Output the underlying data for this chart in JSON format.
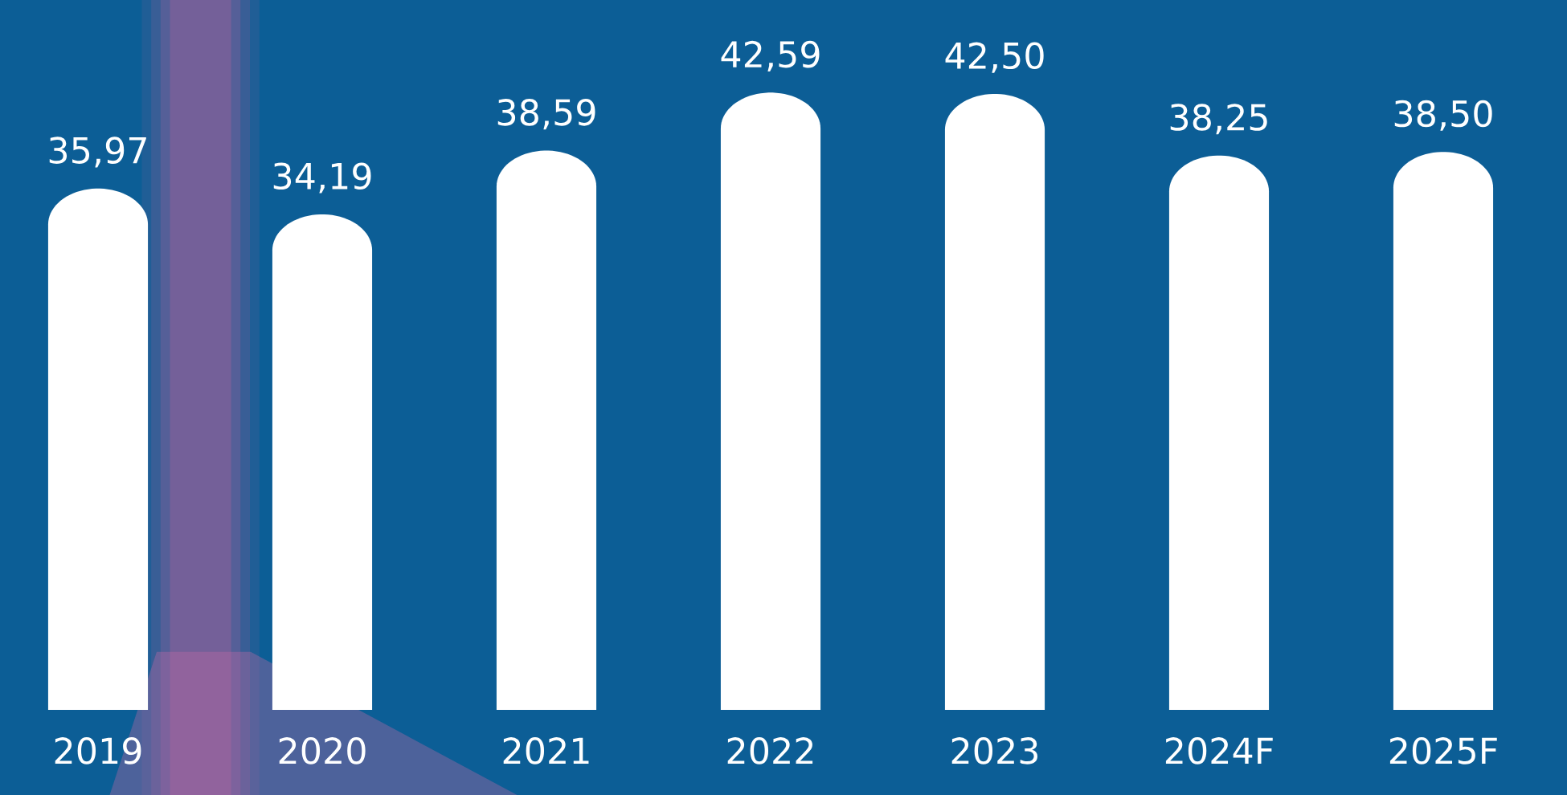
{
  "chart_data": {
    "type": "bar",
    "categories": [
      "2019",
      "2020",
      "2021",
      "2022",
      "2023",
      "2024F",
      "2025F"
    ],
    "values": [
      35.97,
      34.19,
      38.59,
      42.59,
      42.5,
      38.25,
      38.5
    ],
    "color": "#ffffff",
    "value_labels": [
      "35,97",
      "34,19",
      "38,59",
      "42,59",
      "42,50",
      "38,25",
      "38,50"
    ]
  }
}
